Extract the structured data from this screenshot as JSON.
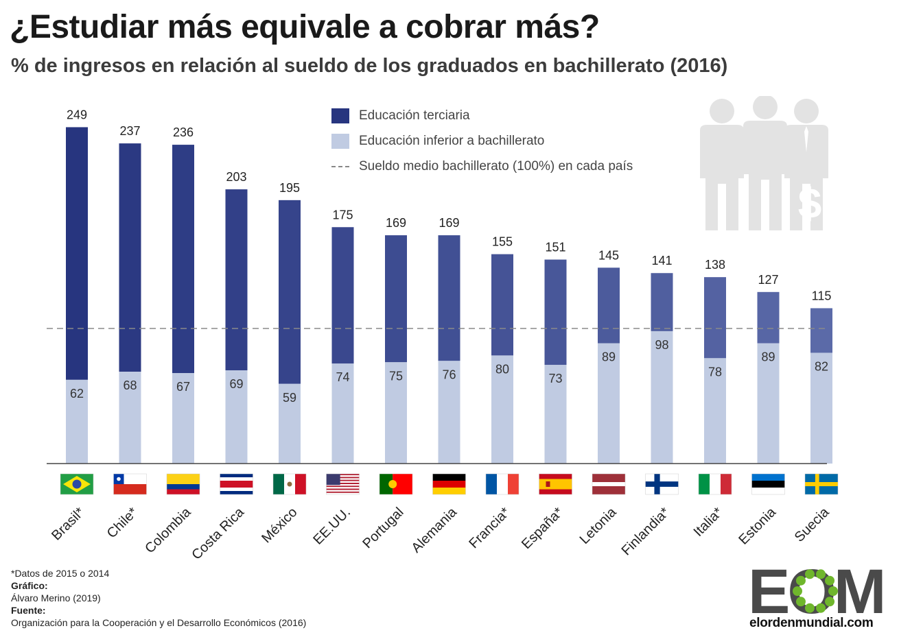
{
  "title": "¿Estudiar más equivale a cobrar más?",
  "subtitle": "% de ingresos en relación al sueldo de los graduados en bachillerato (2016)",
  "legend": {
    "tertiary": "Educación terciaria",
    "below": "Educación inferior a bachillerato",
    "reference": "Sueldo medio bachillerato (100%) en cada país"
  },
  "colors": {
    "tertiary_start": "#27357f",
    "tertiary_end": "#5b6aa8",
    "below": "#c0cbe2",
    "reference_line": "#8a8a8a",
    "people": "#e3e3e3",
    "logo": "#4a4a4a",
    "logo_dots": "#6fb62c"
  },
  "chart_data": {
    "type": "bar",
    "categories": [
      "Brasil*",
      "Chile*",
      "Colombia",
      "Costa Rica",
      "México",
      "EE.UU.",
      "Portugal",
      "Alemania",
      "Francia*",
      "España*",
      "Letonia",
      "Finlandia*",
      "Italia*",
      "Estonia",
      "Suecia"
    ],
    "series": [
      {
        "name": "Educación terciaria",
        "values": [
          249,
          237,
          236,
          203,
          195,
          175,
          169,
          169,
          155,
          151,
          145,
          141,
          138,
          127,
          115
        ]
      },
      {
        "name": "Educación inferior a bachillerato",
        "values": [
          62,
          68,
          67,
          69,
          59,
          74,
          75,
          76,
          80,
          73,
          89,
          98,
          78,
          89,
          82
        ]
      }
    ],
    "reference_value": 100,
    "ylim": [
      0,
      249
    ],
    "flags": [
      "brazil-flag",
      "chile-flag",
      "colombia-flag",
      "costa-rica-flag",
      "mexico-flag",
      "usa-flag",
      "portugal-flag",
      "germany-flag",
      "france-flag",
      "spain-flag",
      "latvia-flag",
      "finland-flag",
      "italy-flag",
      "estonia-flag",
      "sweden-flag"
    ]
  },
  "footnotes": {
    "note": "*Datos de 2015 o 2014",
    "graphic_label": "Gráfico:",
    "graphic_author": "Álvaro Merino (2019)",
    "source_label": "Fuente:",
    "source_name": "Organización para la Cooperación y el Desarrollo Económicos (2016)"
  },
  "logo": {
    "text": "EOM",
    "url": "elordenmundial.com"
  }
}
